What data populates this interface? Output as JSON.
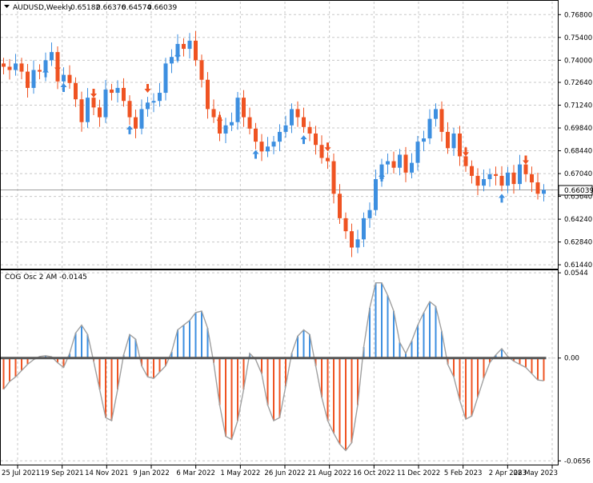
{
  "header": {
    "symbol": "AUDUSD,Weekly",
    "open": "0.65182",
    "high": "0.66376",
    "low": "0.64574",
    "close": "0.66039"
  },
  "indicator": {
    "label": "COG Osc 2 AM -0.0145"
  },
  "price_panel": {
    "current_price_label": "0.66039",
    "current_price": 0.66039,
    "ylim": [
      0.612,
      0.776
    ],
    "y_ticks": [
      "0.76800",
      "0.75400",
      "0.74000",
      "0.72640",
      "0.71240",
      "0.69840",
      "0.68440",
      "0.67040",
      "0.65640",
      "0.64240",
      "0.62840",
      "0.61440"
    ]
  },
  "osc_panel": {
    "ylim": [
      -0.068,
      0.056
    ],
    "y_ticks": [
      "0.0544",
      "0.00",
      "-0.0656"
    ]
  },
  "x_axis": {
    "labels": [
      "25 Jul 2021",
      "19 Sep 2021",
      "14 Nov 2021",
      "9 Jan 2022",
      "6 Mar 2022",
      "1 May 2022",
      "26 Jun 2022",
      "21 Aug 2022",
      "16 Oct 2022",
      "11 Dec 2022",
      "5 Feb 2023",
      "2 Apr 2023",
      "28 May 2023"
    ]
  },
  "colors": {
    "bull": "#3d8fe0",
    "bear": "#ef5322",
    "grid": "#c8c8c8",
    "osc_line": "#a0a0a0",
    "zero_line": "#555555",
    "current_line": "#a0a0a0"
  },
  "chart_data": [
    {
      "type": "candlestick",
      "title": "AUDUSD,Weekly",
      "closes": [
        0.736,
        0.734,
        0.738,
        0.733,
        0.723,
        0.734,
        0.733,
        0.74,
        0.745,
        0.727,
        0.731,
        0.726,
        0.716,
        0.702,
        0.717,
        0.711,
        0.705,
        0.722,
        0.72,
        0.723,
        0.715,
        0.705,
        0.698,
        0.71,
        0.714,
        0.715,
        0.72,
        0.738,
        0.742,
        0.75,
        0.747,
        0.752,
        0.74,
        0.728,
        0.71,
        0.705,
        0.695,
        0.7,
        0.702,
        0.717,
        0.705,
        0.698,
        0.69,
        0.684,
        0.687,
        0.69,
        0.696,
        0.7,
        0.71,
        0.705,
        0.699,
        0.695,
        0.688,
        0.68,
        0.678,
        0.658,
        0.643,
        0.635,
        0.625,
        0.63,
        0.643,
        0.648,
        0.667,
        0.676,
        0.678,
        0.674,
        0.682,
        0.671,
        0.677,
        0.69,
        0.692,
        0.704,
        0.71,
        0.696,
        0.686,
        0.695,
        0.681,
        0.675,
        0.669,
        0.663,
        0.667,
        0.67,
        0.669,
        0.663,
        0.671,
        0.664,
        0.676,
        0.67,
        0.665,
        0.658,
        0.6604
      ],
      "bull": "blue",
      "bear": "red",
      "ylim": [
        0.612,
        0.776
      ],
      "xlabel": "",
      "ylabel": ""
    },
    {
      "type": "bar",
      "title": "COG Osc 2 AM -0.0145",
      "values": [
        -0.02,
        -0.015,
        -0.012,
        -0.008,
        -0.004,
        -0.001,
        0.001,
        0.0015,
        0.0008,
        -0.003,
        -0.006,
        0.003,
        0.016,
        0.021,
        0.015,
        -0.002,
        -0.02,
        -0.038,
        -0.04,
        -0.02,
        0.002,
        0.015,
        0.012,
        -0.005,
        -0.012,
        -0.013,
        -0.009,
        -0.005,
        0.004,
        0.018,
        0.021,
        0.024,
        0.029,
        0.03,
        0.019,
        -0.003,
        -0.03,
        -0.05,
        -0.052,
        -0.04,
        -0.02,
        0.003,
        -0.001,
        -0.01,
        -0.03,
        -0.04,
        -0.038,
        -0.018,
        0.003,
        0.014,
        0.018,
        0.015,
        -0.005,
        -0.025,
        -0.04,
        -0.048,
        -0.055,
        -0.059,
        -0.054,
        -0.03,
        0.007,
        0.032,
        0.048,
        0.048,
        0.04,
        0.03,
        0.01,
        0.003,
        0.011,
        0.021,
        0.029,
        0.036,
        0.033,
        0.017,
        -0.004,
        -0.012,
        -0.027,
        -0.039,
        -0.037,
        -0.025,
        -0.013,
        -0.003,
        0.002,
        0.006,
        0.001,
        -0.002,
        -0.004,
        -0.006,
        -0.01,
        -0.014,
        -0.0145
      ],
      "ylim": [
        -0.068,
        0.056
      ],
      "xlabel": "",
      "ylabel": ""
    }
  ]
}
